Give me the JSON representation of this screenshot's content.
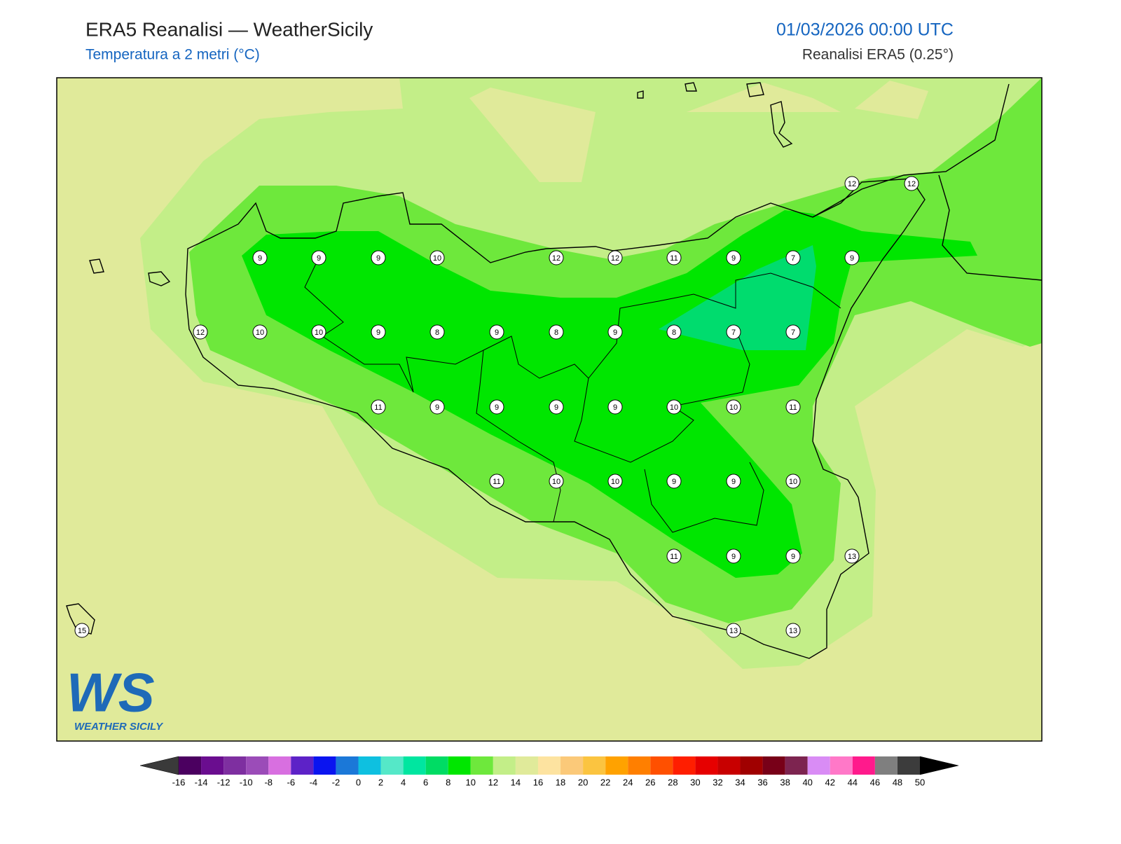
{
  "header": {
    "title": "ERA5 Reanalisi — WeatherSicily",
    "subtitle": "Temperatura a 2 metri (°C)",
    "date": "01/03/2026 00:00 UTC",
    "source": "Reanalisi ERA5 (0.25°)"
  },
  "stations": [
    9,
    9,
    9,
    10,
    12,
    12,
    11,
    9,
    7,
    9,
    12,
    12,
    12,
    10,
    10,
    9,
    8,
    9,
    8,
    9,
    8,
    7,
    7,
    11,
    9,
    9,
    9,
    9,
    10,
    10,
    11,
    11,
    10,
    10,
    9,
    9,
    10,
    11,
    9,
    9,
    13,
    15,
    13,
    13
  ],
  "logo": {
    "mark": "WS",
    "text": "WEATHER SICILY"
  },
  "colorbar": {
    "ticks": [
      -16,
      -14,
      -12,
      -10,
      -8,
      -6,
      -4,
      -2,
      0,
      2,
      4,
      6,
      8,
      10,
      12,
      14,
      16,
      18,
      20,
      22,
      24,
      26,
      28,
      30,
      32,
      34,
      36,
      38,
      40,
      42,
      44,
      46,
      48,
      50
    ],
    "colors": [
      "#4b0060",
      "#6a0d8f",
      "#7e2fa0",
      "#9b4cb8",
      "#d86fe0",
      "#5d22c7",
      "#0a14f0",
      "#1b78d8",
      "#0ec0e0",
      "#55e8c8",
      "#00e6a0",
      "#00dc64",
      "#00e600",
      "#6ee83c",
      "#c3ee88",
      "#e0ea9a",
      "#fde3a0",
      "#fbc979",
      "#fbc440",
      "#ffa200",
      "#ff7f00",
      "#ff5000",
      "#ff1e00",
      "#e60000",
      "#c80000",
      "#a00000",
      "#780018",
      "#7d2450",
      "#d98cf5",
      "#ff78c8",
      "#ff1a8c",
      "#7f7f7f",
      "#3c3c3c"
    ],
    "under_color": "#3a3a3a",
    "over_color": "#000000"
  }
}
